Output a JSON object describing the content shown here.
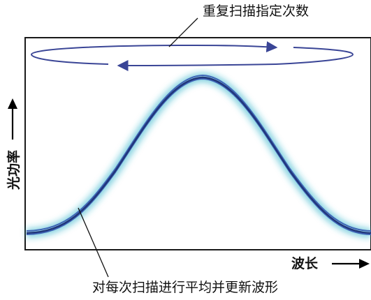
{
  "diagram": {
    "top_callout": "重复扫描指定次数",
    "bottom_callout": "对每次扫描进行平均并更新波形",
    "x_axis_label": "波长",
    "y_axis_label": "光功率"
  },
  "colors": {
    "frame": "#1a1a1a",
    "curve_dark": "#20357a",
    "curve_mid": "#3e63b5",
    "curve_glow": "#27b0c8",
    "scan_loop": "#3a4596",
    "arrow": "#000000"
  },
  "icons": [
    "up-arrow-icon",
    "right-arrow-icon",
    "loop-arrow-icon"
  ]
}
